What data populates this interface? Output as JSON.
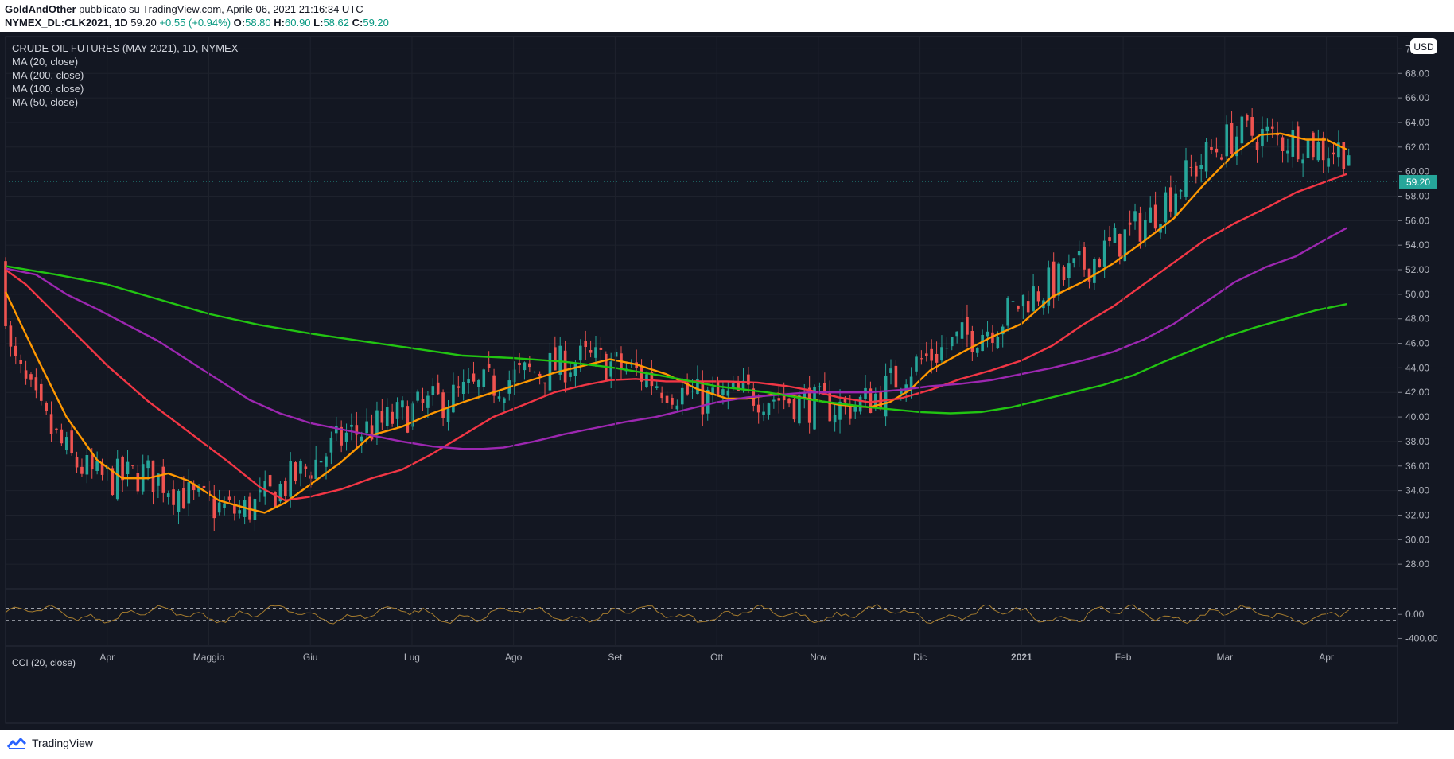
{
  "header": {
    "author": "GoldAndOther",
    "published": "pubblicato su TradingView.com, Aprile 06, 2021 21:16:34 UTC",
    "symbol": "NYMEX_DL:CLK2021, 1D",
    "last": "59.20",
    "change": "+0.55 (+0.94%)",
    "o_label": "O:",
    "o": "58.80",
    "h_label": "H:",
    "h": "60.90",
    "l_label": "L:",
    "l": "58.62",
    "c_label": "C:",
    "c": "59.20"
  },
  "legend": {
    "title": "CRUDE OIL FUTURES (MAY 2021), 1D, NYMEX",
    "ma20": "MA (20, close)",
    "ma200": "MA (200, close)",
    "ma100": "MA (100, close)",
    "ma50": "MA (50, close)"
  },
  "currency_badge": "USD",
  "last_price_label": "59.20",
  "cci_label": "CCI (20, close)",
  "footer_brand": "TradingView",
  "colors": {
    "background": "#131722",
    "up": "#26a69a",
    "down": "#ef5350",
    "ma20": "#ff9800",
    "ma50": "#f23645",
    "ma100": "#9c27b0",
    "ma200": "#22c512",
    "cci": "#a47b2e"
  },
  "chart_data": [
    {
      "type": "candlestick",
      "title": "CRUDE OIL FUTURES (MAY 2021), 1D, NYMEX",
      "currency": "USD",
      "ylim": [
        26.0,
        71.0
      ],
      "y_ticks": [
        "28.00",
        "30.00",
        "32.00",
        "34.00",
        "36.00",
        "38.00",
        "40.00",
        "42.00",
        "44.00",
        "46.00",
        "48.00",
        "50.00",
        "52.00",
        "54.00",
        "56.00",
        "58.00",
        "60.00",
        "62.00",
        "64.00",
        "66.00",
        "68.00",
        "70.00"
      ],
      "x_ticks": [
        {
          "label": "Apr",
          "month": 1
        },
        {
          "label": "Maggio",
          "month": 2
        },
        {
          "label": "Giu",
          "month": 3
        },
        {
          "label": "Lug",
          "month": 4
        },
        {
          "label": "Ago",
          "month": 5
        },
        {
          "label": "Set",
          "month": 6
        },
        {
          "label": "Ott",
          "month": 7
        },
        {
          "label": "Nov",
          "month": 8
        },
        {
          "label": "Dic",
          "month": 9
        },
        {
          "label": "2021",
          "month": 10
        },
        {
          "label": "Feb",
          "month": 11
        },
        {
          "label": "Mar",
          "month": 12
        },
        {
          "label": "Apr",
          "month": 13
        }
      ],
      "x_range_months": [
        0.0,
        13.7
      ],
      "last_price": 59.2,
      "series": [
        {
          "name": "MA (20, close)",
          "color": "#ff9800",
          "points": [
            [
              0.0,
              50.2
            ],
            [
              0.3,
              45.0
            ],
            [
              0.6,
              40.0
            ],
            [
              0.9,
              36.5
            ],
            [
              1.15,
              35.0
            ],
            [
              1.4,
              35.0
            ],
            [
              1.6,
              35.4
            ],
            [
              1.8,
              34.8
            ],
            [
              2.1,
              33.2
            ],
            [
              2.4,
              32.5
            ],
            [
              2.55,
              32.2
            ],
            [
              2.75,
              33.0
            ],
            [
              3.0,
              34.5
            ],
            [
              3.3,
              36.3
            ],
            [
              3.6,
              38.5
            ],
            [
              3.9,
              39.2
            ],
            [
              4.2,
              40.3
            ],
            [
              4.5,
              41.2
            ],
            [
              4.8,
              42.0
            ],
            [
              5.1,
              42.8
            ],
            [
              5.4,
              43.6
            ],
            [
              5.7,
              44.2
            ],
            [
              5.95,
              44.7
            ],
            [
              6.2,
              44.3
            ],
            [
              6.5,
              43.5
            ],
            [
              6.8,
              42.3
            ],
            [
              7.1,
              41.5
            ],
            [
              7.3,
              41.5
            ],
            [
              7.6,
              41.9
            ],
            [
              7.9,
              41.5
            ],
            [
              8.2,
              41.0
            ],
            [
              8.5,
              40.8
            ],
            [
              8.7,
              41.2
            ],
            [
              8.9,
              42.2
            ],
            [
              9.1,
              43.8
            ],
            [
              9.4,
              45.2
            ],
            [
              9.7,
              46.5
            ],
            [
              10.0,
              47.6
            ],
            [
              10.3,
              49.8
            ],
            [
              10.6,
              51.0
            ],
            [
              10.9,
              52.5
            ],
            [
              11.2,
              54.3
            ],
            [
              11.5,
              56.2
            ],
            [
              11.8,
              59.0
            ],
            [
              12.1,
              61.5
            ],
            [
              12.35,
              63.0
            ],
            [
              12.55,
              63.1
            ],
            [
              12.8,
              62.6
            ],
            [
              13.0,
              62.6
            ],
            [
              13.2,
              61.8
            ]
          ]
        },
        {
          "name": "MA (50, close)",
          "color": "#f23645",
          "points": [
            [
              0.0,
              52.0
            ],
            [
              0.2,
              50.8
            ],
            [
              0.6,
              47.5
            ],
            [
              1.0,
              44.2
            ],
            [
              1.4,
              41.3
            ],
            [
              1.8,
              38.8
            ],
            [
              2.2,
              36.3
            ],
            [
              2.5,
              34.3
            ],
            [
              2.75,
              33.2
            ],
            [
              3.0,
              33.5
            ],
            [
              3.3,
              34.1
            ],
            [
              3.6,
              35.0
            ],
            [
              3.9,
              35.7
            ],
            [
              4.2,
              37.0
            ],
            [
              4.5,
              38.5
            ],
            [
              4.8,
              40.0
            ],
            [
              5.1,
              41.0
            ],
            [
              5.4,
              42.0
            ],
            [
              5.7,
              42.6
            ],
            [
              5.95,
              43.0
            ],
            [
              6.2,
              43.1
            ],
            [
              6.5,
              42.9
            ],
            [
              6.8,
              42.9
            ],
            [
              7.1,
              42.9
            ],
            [
              7.4,
              42.8
            ],
            [
              7.7,
              42.5
            ],
            [
              7.9,
              42.2
            ],
            [
              8.2,
              41.6
            ],
            [
              8.5,
              41.2
            ],
            [
              8.8,
              41.5
            ],
            [
              9.1,
              42.2
            ],
            [
              9.4,
              43.1
            ],
            [
              9.7,
              43.8
            ],
            [
              10.0,
              44.6
            ],
            [
              10.3,
              45.8
            ],
            [
              10.6,
              47.5
            ],
            [
              10.9,
              49.0
            ],
            [
              11.2,
              50.8
            ],
            [
              11.5,
              52.6
            ],
            [
              11.8,
              54.4
            ],
            [
              12.1,
              55.8
            ],
            [
              12.4,
              57.0
            ],
            [
              12.7,
              58.3
            ],
            [
              13.0,
              59.2
            ],
            [
              13.2,
              59.8
            ]
          ]
        },
        {
          "name": "MA (100, close)",
          "color": "#9c27b0",
          "points": [
            [
              0.0,
              52.1
            ],
            [
              0.3,
              51.6
            ],
            [
              0.6,
              50.0
            ],
            [
              0.9,
              48.8
            ],
            [
              1.2,
              47.5
            ],
            [
              1.5,
              46.2
            ],
            [
              1.8,
              44.6
            ],
            [
              2.1,
              43.0
            ],
            [
              2.4,
              41.4
            ],
            [
              2.7,
              40.3
            ],
            [
              3.0,
              39.5
            ],
            [
              3.3,
              39.0
            ],
            [
              3.6,
              38.5
            ],
            [
              3.9,
              38.0
            ],
            [
              4.2,
              37.6
            ],
            [
              4.5,
              37.4
            ],
            [
              4.7,
              37.4
            ],
            [
              4.9,
              37.5
            ],
            [
              5.2,
              38.0
            ],
            [
              5.5,
              38.6
            ],
            [
              5.8,
              39.1
            ],
            [
              6.1,
              39.6
            ],
            [
              6.4,
              40.0
            ],
            [
              6.7,
              40.6
            ],
            [
              7.0,
              41.2
            ],
            [
              7.3,
              41.6
            ],
            [
              7.6,
              41.8
            ],
            [
              7.9,
              42.0
            ],
            [
              8.2,
              42.0
            ],
            [
              8.5,
              42.0
            ],
            [
              8.8,
              42.2
            ],
            [
              9.1,
              42.5
            ],
            [
              9.4,
              42.7
            ],
            [
              9.7,
              43.0
            ],
            [
              10.0,
              43.5
            ],
            [
              10.3,
              44.0
            ],
            [
              10.6,
              44.6
            ],
            [
              10.9,
              45.3
            ],
            [
              11.2,
              46.3
            ],
            [
              11.5,
              47.6
            ],
            [
              11.8,
              49.3
            ],
            [
              12.1,
              51.0
            ],
            [
              12.4,
              52.2
            ],
            [
              12.7,
              53.1
            ],
            [
              13.0,
              54.5
            ],
            [
              13.2,
              55.4
            ]
          ]
        },
        {
          "name": "MA (200, close)",
          "color": "#22c512",
          "points": [
            [
              0.0,
              52.3
            ],
            [
              0.5,
              51.6
            ],
            [
              1.0,
              50.8
            ],
            [
              1.5,
              49.6
            ],
            [
              2.0,
              48.4
            ],
            [
              2.5,
              47.5
            ],
            [
              3.0,
              46.8
            ],
            [
              3.5,
              46.2
            ],
            [
              4.0,
              45.6
            ],
            [
              4.5,
              45.0
            ],
            [
              5.0,
              44.8
            ],
            [
              5.5,
              44.5
            ],
            [
              6.0,
              44.0
            ],
            [
              6.5,
              43.3
            ],
            [
              7.0,
              42.5
            ],
            [
              7.5,
              42.0
            ],
            [
              8.0,
              41.3
            ],
            [
              8.5,
              40.8
            ],
            [
              9.0,
              40.4
            ],
            [
              9.3,
              40.3
            ],
            [
              9.6,
              40.4
            ],
            [
              9.9,
              40.8
            ],
            [
              10.2,
              41.4
            ],
            [
              10.5,
              42.0
            ],
            [
              10.8,
              42.6
            ],
            [
              11.1,
              43.4
            ],
            [
              11.4,
              44.5
            ],
            [
              11.7,
              45.5
            ],
            [
              12.0,
              46.5
            ],
            [
              12.3,
              47.3
            ],
            [
              12.6,
              48.0
            ],
            [
              12.9,
              48.7
            ],
            [
              13.2,
              49.2
            ]
          ]
        }
      ]
    },
    {
      "type": "line",
      "title": "CCI (20, close)",
      "y_ticks": [
        "0.00",
        "-400.00"
      ],
      "bands": [
        100,
        -100
      ],
      "ylim": [
        -500,
        400
      ]
    }
  ]
}
